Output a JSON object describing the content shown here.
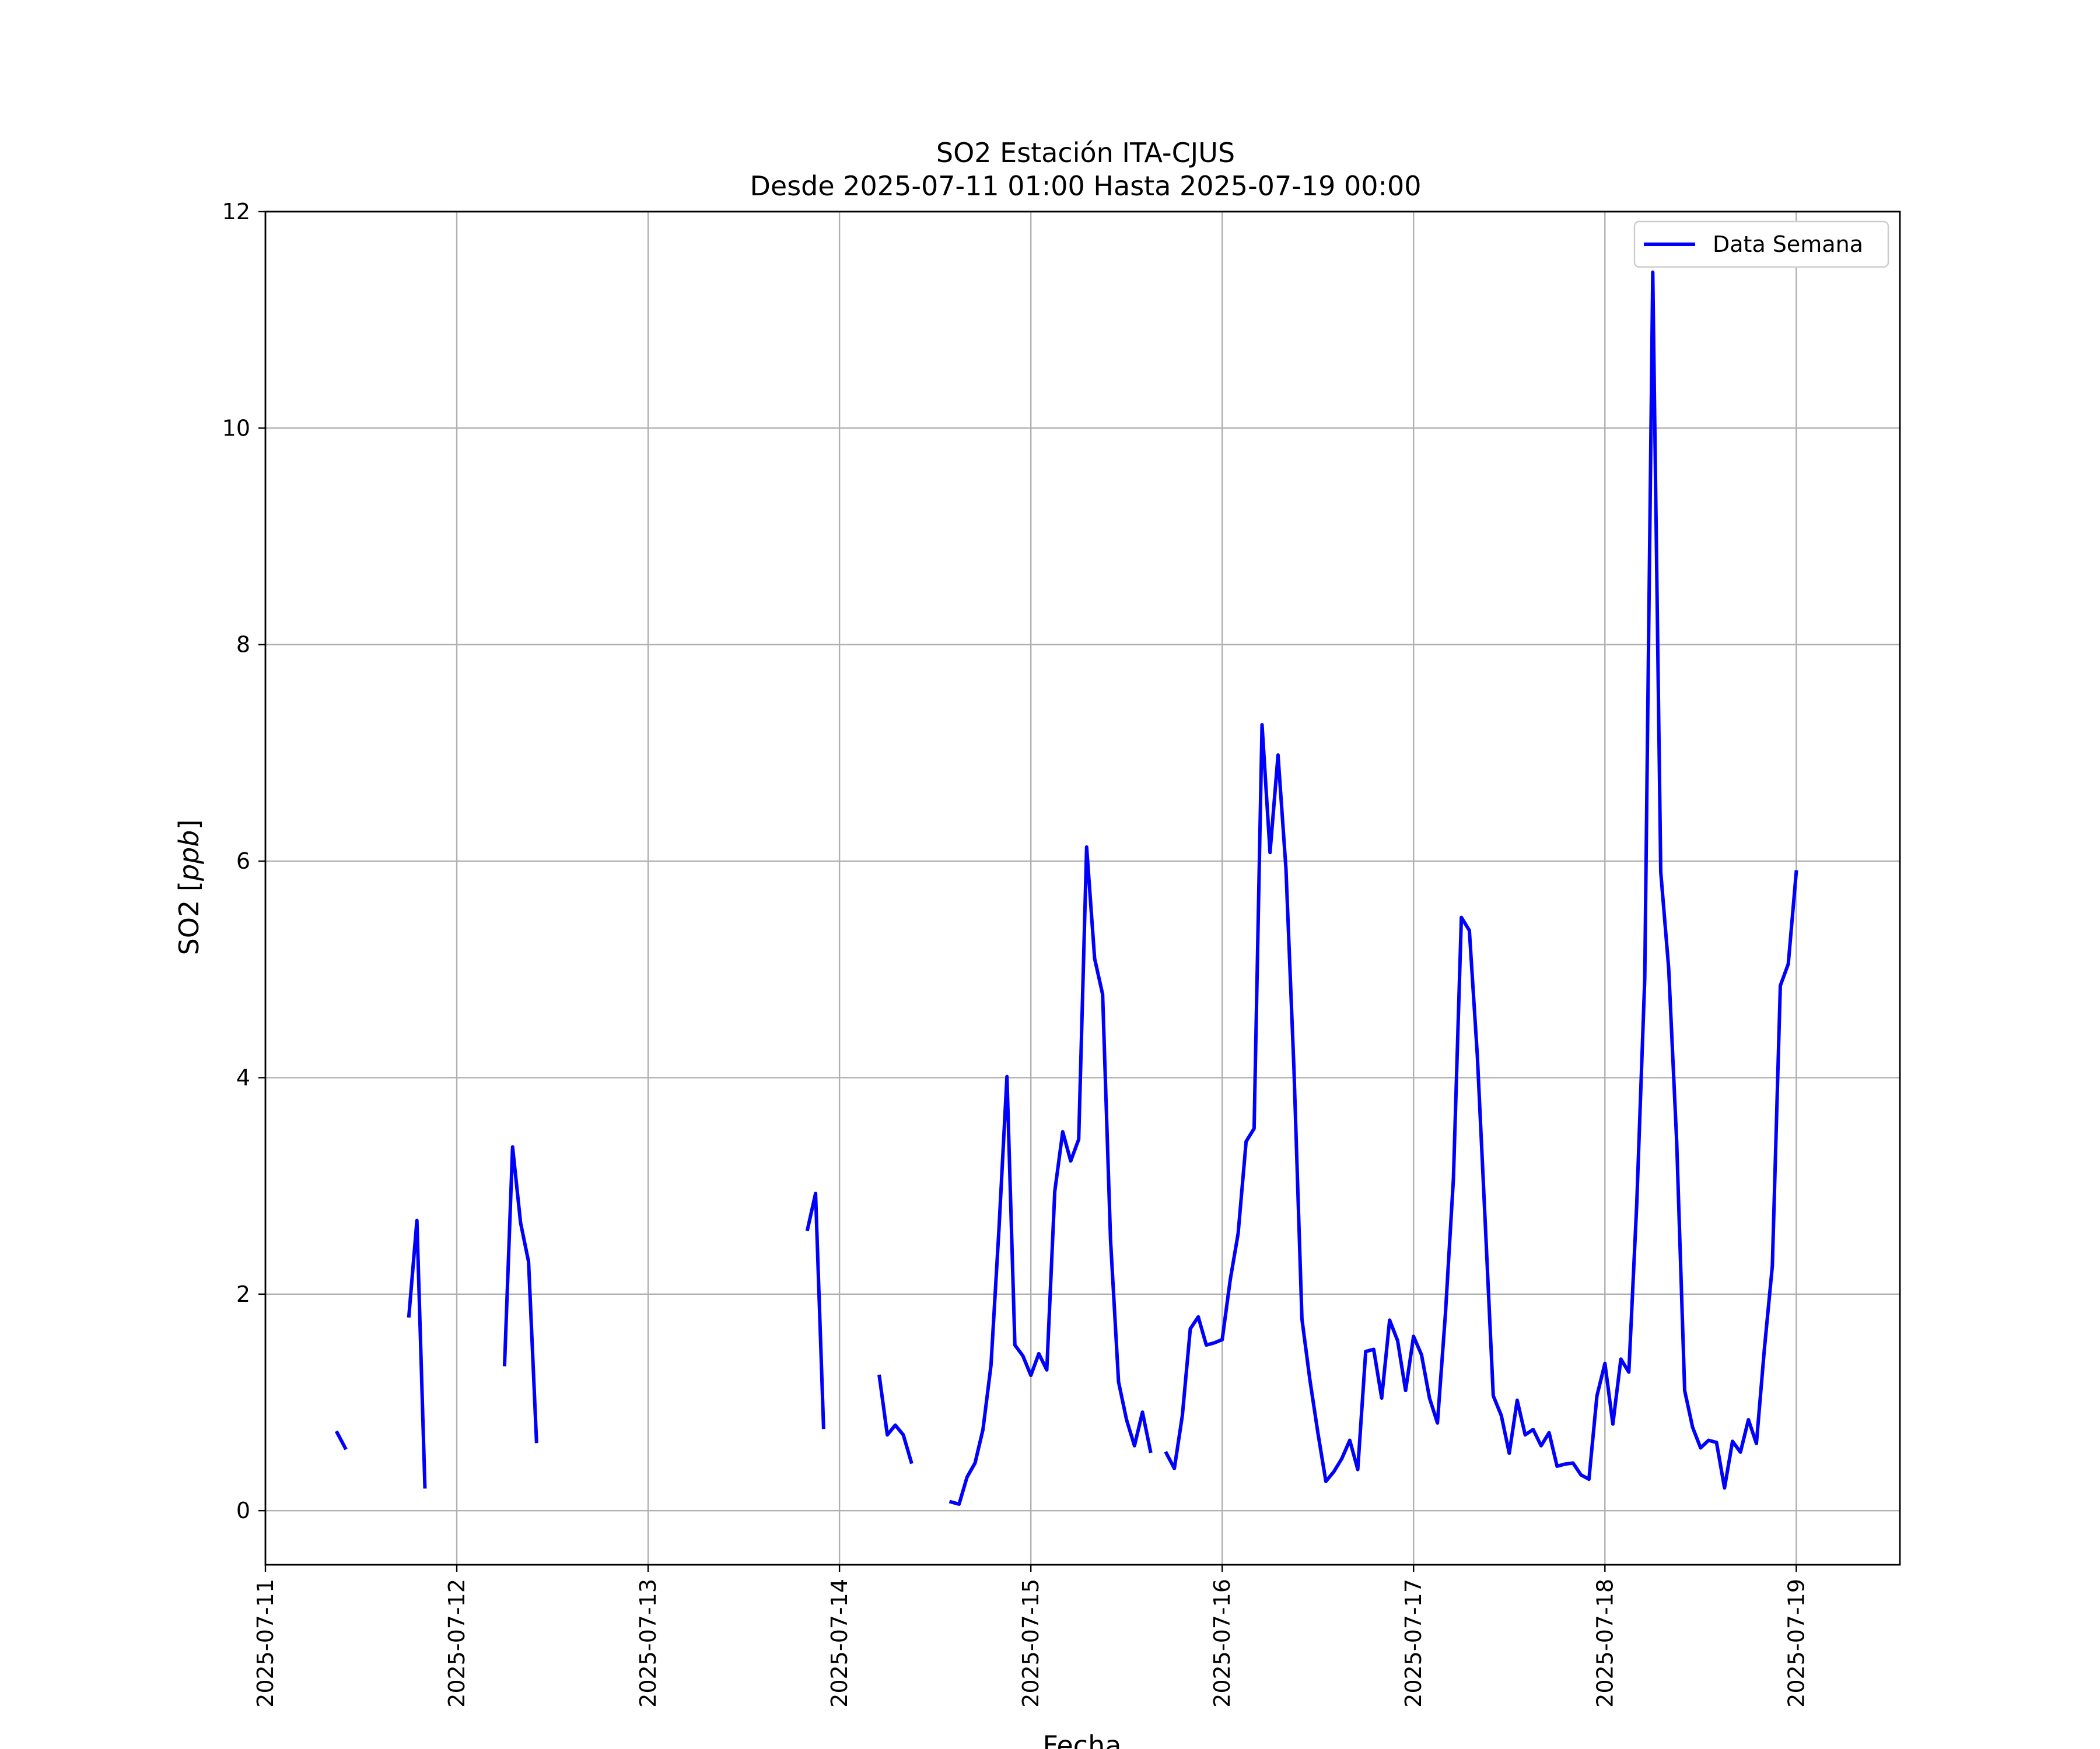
{
  "chart_data": {
    "type": "line",
    "title": "SO2 Estación ITA-CJUS",
    "subtitle": "Desde 2025-07-11 01:00 Hasta 2025-07-19 00:00",
    "xlabel": "Fecha",
    "ylabel": "SO2 [ppb]",
    "ylabel_unit_italic": "ppb",
    "xlim": [
      "2025-07-11 00:00",
      "2025-07-19 13:00"
    ],
    "ylim": [
      -0.5,
      12
    ],
    "x_ticks": [
      "2025-07-11",
      "2025-07-12",
      "2025-07-13",
      "2025-07-14",
      "2025-07-15",
      "2025-07-16",
      "2025-07-17",
      "2025-07-18",
      "2025-07-19"
    ],
    "y_ticks": [
      0,
      2,
      4,
      6,
      8,
      10,
      12
    ],
    "grid": true,
    "legend_position": "top-right",
    "colors": {
      "series": "#0000ff",
      "grid": "#b0b0b0",
      "frame": "#000000"
    },
    "series": [
      {
        "name": "Data Semana",
        "color": "#0000ff",
        "points": [
          [
            "2025-07-11 09:00",
            0.72
          ],
          [
            "2025-07-11 10:00",
            0.58
          ],
          [
            "2025-07-11 18:00",
            1.8
          ],
          [
            "2025-07-11 19:00",
            2.68
          ],
          [
            "2025-07-11 20:00",
            0.22
          ],
          [
            "2025-07-12 06:00",
            1.35
          ],
          [
            "2025-07-12 07:00",
            3.36
          ],
          [
            "2025-07-12 08:00",
            2.66
          ],
          [
            "2025-07-12 09:00",
            2.3
          ],
          [
            "2025-07-12 10:00",
            0.64
          ],
          [
            "2025-07-13 20:00",
            2.6
          ],
          [
            "2025-07-13 21:00",
            2.93
          ],
          [
            "2025-07-13 22:00",
            0.77
          ],
          [
            "2025-07-14 05:00",
            1.24
          ],
          [
            "2025-07-14 06:00",
            0.7
          ],
          [
            "2025-07-14 07:00",
            0.79
          ],
          [
            "2025-07-14 08:00",
            0.7
          ],
          [
            "2025-07-14 09:00",
            0.45
          ],
          [
            "2025-07-14 14:00",
            0.08
          ],
          [
            "2025-07-14 15:00",
            0.06
          ],
          [
            "2025-07-14 16:00",
            0.31
          ],
          [
            "2025-07-14 17:00",
            0.44
          ],
          [
            "2025-07-14 18:00",
            0.75
          ],
          [
            "2025-07-14 19:00",
            1.34
          ],
          [
            "2025-07-14 20:00",
            2.6
          ],
          [
            "2025-07-14 21:00",
            4.01
          ],
          [
            "2025-07-14 22:00",
            1.53
          ],
          [
            "2025-07-14 23:00",
            1.43
          ],
          [
            "2025-07-15 00:00",
            1.25
          ],
          [
            "2025-07-15 01:00",
            1.45
          ],
          [
            "2025-07-15 02:00",
            1.3
          ],
          [
            "2025-07-15 03:00",
            2.95
          ],
          [
            "2025-07-15 04:00",
            3.5
          ],
          [
            "2025-07-15 05:00",
            3.23
          ],
          [
            "2025-07-15 06:00",
            3.43
          ],
          [
            "2025-07-15 07:00",
            6.13
          ],
          [
            "2025-07-15 08:00",
            5.1
          ],
          [
            "2025-07-15 09:00",
            4.77
          ],
          [
            "2025-07-15 10:00",
            2.5
          ],
          [
            "2025-07-15 11:00",
            1.19
          ],
          [
            "2025-07-15 12:00",
            0.84
          ],
          [
            "2025-07-15 13:00",
            0.6
          ],
          [
            "2025-07-15 14:00",
            0.91
          ],
          [
            "2025-07-15 15:00",
            0.55
          ],
          [
            "2025-07-15 17:00",
            0.53
          ],
          [
            "2025-07-15 18:00",
            0.39
          ],
          [
            "2025-07-15 19:00",
            0.88
          ],
          [
            "2025-07-15 20:00",
            1.68
          ],
          [
            "2025-07-15 21:00",
            1.79
          ],
          [
            "2025-07-15 22:00",
            1.53
          ],
          [
            "2025-07-15 23:00",
            1.55
          ],
          [
            "2025-07-16 00:00",
            1.58
          ],
          [
            "2025-07-16 01:00",
            2.13
          ],
          [
            "2025-07-16 02:00",
            2.56
          ],
          [
            "2025-07-16 03:00",
            3.41
          ],
          [
            "2025-07-16 04:00",
            3.53
          ],
          [
            "2025-07-16 05:00",
            7.26
          ],
          [
            "2025-07-16 06:00",
            6.08
          ],
          [
            "2025-07-16 07:00",
            6.98
          ],
          [
            "2025-07-16 08:00",
            5.93
          ],
          [
            "2025-07-16 09:00",
            4.08
          ],
          [
            "2025-07-16 10:00",
            1.77
          ],
          [
            "2025-07-16 11:00",
            1.21
          ],
          [
            "2025-07-16 12:00",
            0.72
          ],
          [
            "2025-07-16 13:00",
            0.27
          ],
          [
            "2025-07-16 14:00",
            0.36
          ],
          [
            "2025-07-16 15:00",
            0.48
          ],
          [
            "2025-07-16 16:00",
            0.65
          ],
          [
            "2025-07-16 17:00",
            0.38
          ],
          [
            "2025-07-16 18:00",
            1.47
          ],
          [
            "2025-07-16 19:00",
            1.49
          ],
          [
            "2025-07-16 20:00",
            1.04
          ],
          [
            "2025-07-16 21:00",
            1.76
          ],
          [
            "2025-07-16 22:00",
            1.57
          ],
          [
            "2025-07-16 23:00",
            1.11
          ],
          [
            "2025-07-17 00:00",
            1.61
          ],
          [
            "2025-07-17 01:00",
            1.44
          ],
          [
            "2025-07-17 02:00",
            1.04
          ],
          [
            "2025-07-17 03:00",
            0.81
          ],
          [
            "2025-07-17 04:00",
            1.82
          ],
          [
            "2025-07-17 05:00",
            3.07
          ],
          [
            "2025-07-17 06:00",
            5.48
          ],
          [
            "2025-07-17 07:00",
            5.36
          ],
          [
            "2025-07-17 08:00",
            4.2
          ],
          [
            "2025-07-17 09:00",
            2.65
          ],
          [
            "2025-07-17 10:00",
            1.06
          ],
          [
            "2025-07-17 11:00",
            0.88
          ],
          [
            "2025-07-17 12:00",
            0.53
          ],
          [
            "2025-07-17 13:00",
            1.02
          ],
          [
            "2025-07-17 14:00",
            0.7
          ],
          [
            "2025-07-17 15:00",
            0.75
          ],
          [
            "2025-07-17 16:00",
            0.6
          ],
          [
            "2025-07-17 17:00",
            0.72
          ],
          [
            "2025-07-17 18:00",
            0.41
          ],
          [
            "2025-07-17 19:00",
            0.43
          ],
          [
            "2025-07-17 20:00",
            0.44
          ],
          [
            "2025-07-17 21:00",
            0.33
          ],
          [
            "2025-07-17 22:00",
            0.29
          ],
          [
            "2025-07-17 23:00",
            1.06
          ],
          [
            "2025-07-18 00:00",
            1.36
          ],
          [
            "2025-07-18 01:00",
            0.8
          ],
          [
            "2025-07-18 02:00",
            1.4
          ],
          [
            "2025-07-18 03:00",
            1.28
          ],
          [
            "2025-07-18 04:00",
            2.84
          ],
          [
            "2025-07-18 05:00",
            4.92
          ],
          [
            "2025-07-18 06:00",
            11.44
          ],
          [
            "2025-07-18 07:00",
            5.9
          ],
          [
            "2025-07-18 08:00",
            5.01
          ],
          [
            "2025-07-18 09:00",
            3.41
          ],
          [
            "2025-07-18 10:00",
            1.11
          ],
          [
            "2025-07-18 11:00",
            0.77
          ],
          [
            "2025-07-18 12:00",
            0.58
          ],
          [
            "2025-07-18 13:00",
            0.65
          ],
          [
            "2025-07-18 14:00",
            0.63
          ],
          [
            "2025-07-18 15:00",
            0.21
          ],
          [
            "2025-07-18 16:00",
            0.64
          ],
          [
            "2025-07-18 17:00",
            0.54
          ],
          [
            "2025-07-18 18:00",
            0.84
          ],
          [
            "2025-07-18 19:00",
            0.62
          ],
          [
            "2025-07-18 20:00",
            1.49
          ],
          [
            "2025-07-18 21:00",
            2.26
          ],
          [
            "2025-07-18 22:00",
            4.85
          ],
          [
            "2025-07-18 23:00",
            5.05
          ],
          [
            "2025-07-19 00:00",
            5.9
          ]
        ]
      }
    ]
  }
}
